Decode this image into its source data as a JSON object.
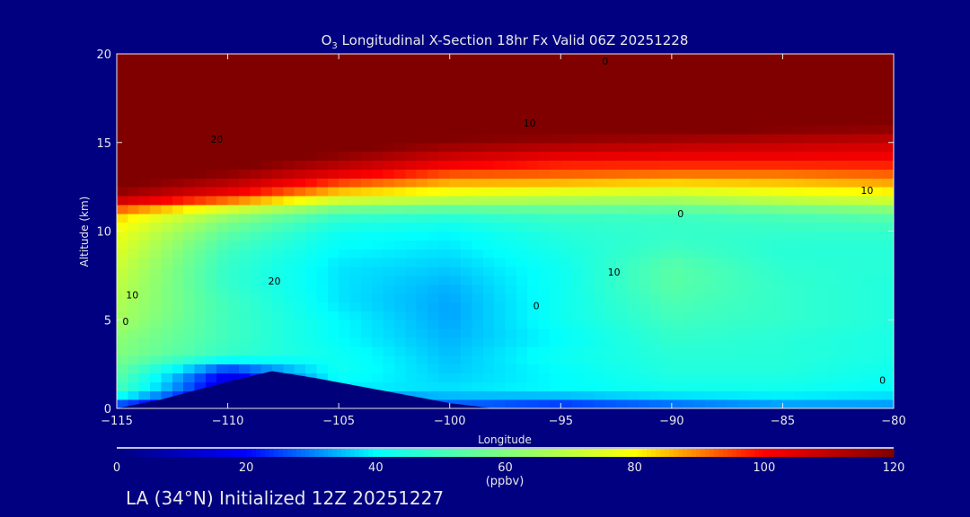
{
  "chart_data": {
    "type": "heatmap",
    "title_main": "O",
    "title_sub": "3",
    "title_rest": " Longitudinal X-Section 18hr  Fx Valid 06Z 20251228",
    "xlabel": "Longitude",
    "ylabel": "Altitude (km)",
    "xlim": [
      -115,
      -80
    ],
    "ylim": [
      0,
      20
    ],
    "xticks": [
      -115,
      -110,
      -105,
      -100,
      -95,
      -90,
      -85,
      -80
    ],
    "xtick_labels": [
      "−115",
      "−110",
      "−105",
      "−100",
      "−95",
      "−90",
      "−85",
      "−80"
    ],
    "yticks": [
      0,
      5,
      10,
      15,
      20
    ],
    "ytick_labels": [
      "0",
      "5",
      "10",
      "15",
      "20"
    ],
    "grid_lon": [
      -115,
      -110,
      -105,
      -100,
      -95,
      -90,
      -85,
      -80
    ],
    "grid_alt": [
      0,
      1,
      2,
      3,
      4,
      5,
      6,
      7,
      8,
      9,
      10,
      11,
      12,
      13,
      14,
      15,
      16,
      17,
      18,
      19,
      20
    ],
    "values": [
      [
        20,
        5,
        10,
        25,
        20,
        25,
        30,
        30
      ],
      [
        50,
        12,
        38,
        38,
        40,
        42,
        42,
        40
      ],
      [
        55,
        18,
        42,
        36,
        40,
        45,
        45,
        42
      ],
      [
        60,
        48,
        42,
        35,
        42,
        46,
        46,
        44
      ],
      [
        62,
        50,
        40,
        34,
        40,
        48,
        46,
        44
      ],
      [
        66,
        50,
        40,
        33,
        42,
        50,
        48,
        45
      ],
      [
        68,
        50,
        38,
        33,
        42,
        52,
        48,
        45
      ],
      [
        70,
        48,
        38,
        34,
        42,
        54,
        48,
        45
      ],
      [
        72,
        48,
        38,
        36,
        42,
        54,
        47,
        46
      ],
      [
        75,
        50,
        40,
        38,
        44,
        50,
        46,
        46
      ],
      [
        78,
        55,
        42,
        40,
        46,
        48,
        48,
        48
      ],
      [
        85,
        65,
        50,
        48,
        50,
        50,
        52,
        55
      ],
      [
        115,
        100,
        80,
        75,
        72,
        70,
        75,
        78
      ],
      [
        125,
        115,
        100,
        90,
        90,
        88,
        88,
        90
      ],
      [
        130,
        125,
        115,
        105,
        100,
        100,
        100,
        100
      ],
      [
        130,
        130,
        125,
        118,
        115,
        112,
        110,
        108
      ],
      [
        130,
        130,
        130,
        125,
        125,
        125,
        122,
        120
      ],
      [
        130,
        130,
        130,
        130,
        130,
        130,
        130,
        130
      ],
      [
        130,
        130,
        130,
        130,
        130,
        130,
        130,
        130
      ],
      [
        130,
        130,
        130,
        130,
        130,
        130,
        130,
        130
      ],
      [
        130,
        130,
        130,
        130,
        130,
        130,
        130,
        130
      ]
    ],
    "terrain": {
      "lon": [
        -115,
        -113,
        -110,
        -108,
        -106,
        -103,
        -100,
        -98,
        -80
      ],
      "alt": [
        0,
        0.5,
        1.5,
        2.1,
        1.7,
        1.0,
        0.3,
        0,
        0
      ]
    },
    "contour_labels": [
      {
        "text": "20",
        "lon": -110.5,
        "alt": 15.2
      },
      {
        "text": "0",
        "lon": -93.0,
        "alt": 19.6
      },
      {
        "text": "10",
        "lon": -96.4,
        "alt": 16.1
      },
      {
        "text": "10",
        "lon": -81.2,
        "alt": 12.3
      },
      {
        "text": "0",
        "lon": -89.6,
        "alt": 11.0
      },
      {
        "text": "20",
        "lon": -107.9,
        "alt": 7.2
      },
      {
        "text": "10",
        "lon": -114.3,
        "alt": 6.4
      },
      {
        "text": "0",
        "lon": -114.6,
        "alt": 4.9
      },
      {
        "text": "10",
        "lon": -92.6,
        "alt": 7.7
      },
      {
        "text": "0",
        "lon": -96.1,
        "alt": 5.8
      },
      {
        "text": "0",
        "lon": -80.5,
        "alt": 1.6
      }
    ],
    "colorbar": {
      "range": [
        0,
        120
      ],
      "ticks": [
        0,
        20,
        40,
        60,
        80,
        100,
        120
      ],
      "tick_labels": [
        "0",
        "20",
        "40",
        "60",
        "80",
        "100",
        "120"
      ],
      "label": "(ppbv)",
      "colors": [
        "#000080",
        "#0000ff",
        "#00ffff",
        "#7fff7f",
        "#ffff00",
        "#ff0000",
        "#800000"
      ]
    }
  },
  "footer": "LA (34°N) Initialized 12Z 20251227",
  "colors": {
    "background": "#000080",
    "text": "#e8e8e8"
  }
}
